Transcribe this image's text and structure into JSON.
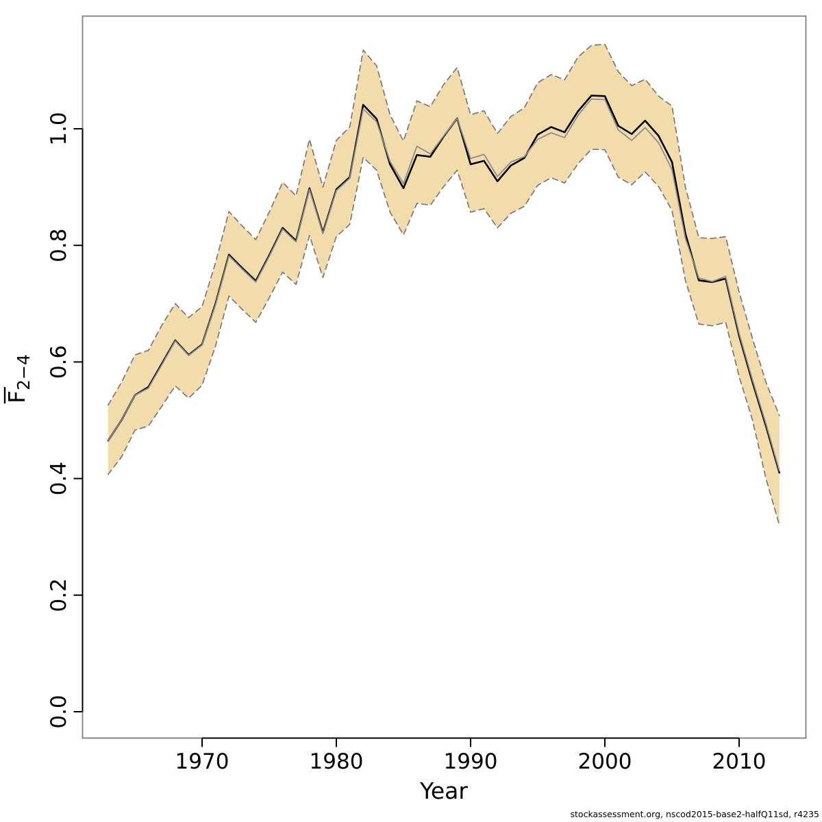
{
  "page": {
    "background": "#ffffff",
    "text_color": "#000000"
  },
  "footer": {
    "credit": "stockassessment.org, nscod2015-base2-halfQ11sd, r4235"
  },
  "chart_data": {
    "type": "line",
    "title": "",
    "xlabel": "Year",
    "ylabel_parts": {
      "letter": "F",
      "overline": true,
      "subscript": "2−4"
    },
    "grid": false,
    "legend_position": "none",
    "x_range": [
      1963,
      2013
    ],
    "ylim": [
      -0.05,
      1.2
    ],
    "axis_box_color": "#888888",
    "band": {
      "fill": "#f2dcab",
      "edge_color": "#7e7e7e",
      "edge_style": "dashed"
    },
    "x_ticks": {
      "values": [
        1970,
        1980,
        1990,
        2000,
        2010
      ],
      "labels": [
        "1970",
        "1980",
        "1990",
        "2000",
        "2010"
      ]
    },
    "y_ticks": {
      "values": [
        0.0,
        0.2,
        0.4,
        0.6,
        0.8,
        1.0
      ],
      "labels": [
        "0.0",
        "0.2",
        "0.4",
        "0.6",
        "0.8",
        "1.0"
      ]
    },
    "x": [
      1963,
      1964,
      1965,
      1966,
      1967,
      1968,
      1969,
      1970,
      1971,
      1972,
      1973,
      1974,
      1975,
      1976,
      1977,
      1978,
      1979,
      1980,
      1981,
      1982,
      1983,
      1984,
      1985,
      1986,
      1987,
      1988,
      1989,
      1990,
      1991,
      1992,
      1993,
      1994,
      1995,
      1996,
      1997,
      1998,
      1999,
      2000,
      2001,
      2002,
      2003,
      2004,
      2005,
      2006,
      2007,
      2008,
      2009,
      2010,
      2011,
      2012,
      2013
    ],
    "series": [
      {
        "name": "fbar-estimate",
        "color": "#000000",
        "style": "solid",
        "width": 2.6,
        "values": [
          0.465,
          0.5,
          0.543,
          0.557,
          0.597,
          0.637,
          0.612,
          0.63,
          0.7,
          0.784,
          0.761,
          0.739,
          0.783,
          0.83,
          0.808,
          0.898,
          0.822,
          0.896,
          0.917,
          1.041,
          1.017,
          0.939,
          0.898,
          0.955,
          0.952,
          0.987,
          1.018,
          0.939,
          0.945,
          0.91,
          0.937,
          0.95,
          0.99,
          1.003,
          0.994,
          1.03,
          1.057,
          1.056,
          1.005,
          0.991,
          1.014,
          0.988,
          0.943,
          0.82,
          0.74,
          0.737,
          0.743,
          0.645,
          0.565,
          0.49,
          0.41
        ]
      },
      {
        "name": "fbar-comparison-run",
        "color": "#8d8d8d",
        "style": "solid",
        "width": 1.8,
        "values": [
          0.465,
          0.5,
          0.543,
          0.555,
          0.595,
          0.636,
          0.611,
          0.629,
          0.698,
          0.782,
          0.759,
          0.737,
          0.781,
          0.828,
          0.806,
          0.896,
          0.82,
          0.894,
          0.915,
          1.034,
          1.012,
          0.944,
          0.906,
          0.97,
          0.957,
          0.988,
          1.018,
          0.949,
          0.956,
          0.918,
          0.943,
          0.952,
          0.982,
          0.993,
          0.985,
          1.023,
          1.051,
          1.05,
          0.998,
          0.98,
          1.002,
          0.976,
          0.93,
          0.812,
          0.744,
          0.738,
          0.747,
          0.649,
          0.569,
          0.494,
          0.413
        ]
      },
      {
        "name": "ci-upper",
        "color": "#7e7e7e",
        "style": "dashed",
        "width": 1.8,
        "values": [
          0.526,
          0.565,
          0.612,
          0.62,
          0.663,
          0.7,
          0.676,
          0.695,
          0.77,
          0.858,
          0.833,
          0.81,
          0.857,
          0.908,
          0.885,
          0.982,
          0.9,
          0.98,
          1.003,
          1.135,
          1.108,
          1.024,
          0.979,
          1.048,
          1.038,
          1.076,
          1.105,
          1.024,
          1.031,
          0.992,
          1.021,
          1.036,
          1.079,
          1.093,
          1.084,
          1.123,
          1.143,
          1.145,
          1.098,
          1.074,
          1.085,
          1.056,
          1.039,
          0.9,
          0.813,
          0.812,
          0.815,
          0.72,
          0.64,
          0.565,
          0.508
        ]
      },
      {
        "name": "ci-lower",
        "color": "#7e7e7e",
        "style": "dashed",
        "width": 1.8,
        "values": [
          0.407,
          0.437,
          0.483,
          0.49,
          0.524,
          0.559,
          0.538,
          0.56,
          0.627,
          0.713,
          0.69,
          0.668,
          0.71,
          0.754,
          0.733,
          0.817,
          0.745,
          0.815,
          0.836,
          0.951,
          0.929,
          0.857,
          0.818,
          0.872,
          0.869,
          0.901,
          0.929,
          0.857,
          0.863,
          0.83,
          0.855,
          0.867,
          0.903,
          0.916,
          0.907,
          0.94,
          0.965,
          0.964,
          0.917,
          0.904,
          0.926,
          0.901,
          0.86,
          0.74,
          0.665,
          0.662,
          0.668,
          0.575,
          0.5,
          0.4,
          0.32
        ]
      }
    ]
  }
}
